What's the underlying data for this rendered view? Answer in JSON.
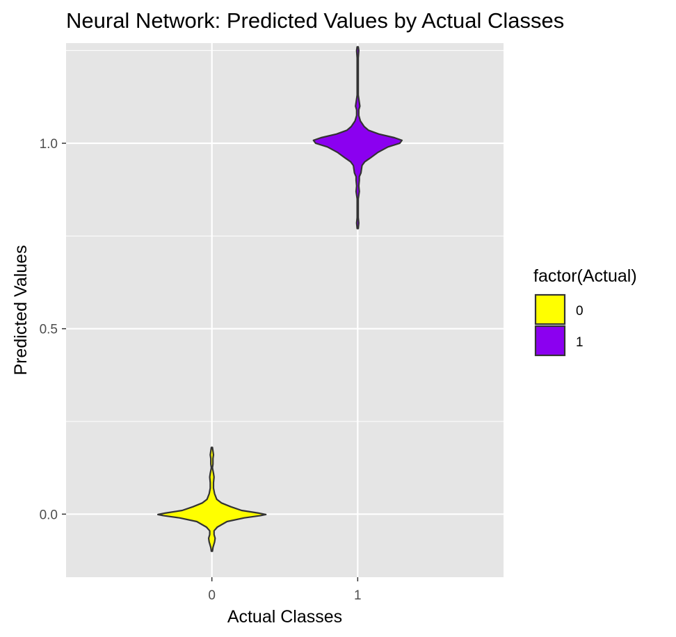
{
  "chart_data": {
    "type": "violin",
    "title": "Neural Network: Predicted Values by Actual Classes",
    "xlabel": "Actual Classes",
    "ylabel": "Predicted Values",
    "categories": [
      "0",
      "1"
    ],
    "ylim": [
      -0.17,
      1.27
    ],
    "y_ticks": [
      "0.0",
      "0.5",
      "1.0"
    ],
    "y_tick_values": [
      0.0,
      0.5,
      1.0
    ],
    "grid": true,
    "legend": {
      "title": "factor(Actual)",
      "position": "right",
      "entries": [
        {
          "label": "0",
          "color": "#FFFF00"
        },
        {
          "label": "1",
          "color": "#8B00F0"
        }
      ]
    },
    "series": [
      {
        "category": "0",
        "color": "#FFFF00",
        "range": [
          -0.1,
          0.18
        ],
        "profile": [
          [
            -0.1,
            0.01
          ],
          [
            -0.09,
            0.02
          ],
          [
            -0.075,
            0.05
          ],
          [
            -0.065,
            0.06
          ],
          [
            -0.055,
            0.04
          ],
          [
            -0.045,
            0.04
          ],
          [
            -0.035,
            0.1
          ],
          [
            -0.02,
            0.28
          ],
          [
            -0.01,
            0.6
          ],
          [
            -0.004,
            0.9
          ],
          [
            -0.001,
            1.0
          ],
          [
            0.003,
            0.86
          ],
          [
            0.01,
            0.55
          ],
          [
            0.02,
            0.35
          ],
          [
            0.03,
            0.18
          ],
          [
            0.04,
            0.09
          ],
          [
            0.055,
            0.05
          ],
          [
            0.07,
            0.03
          ],
          [
            0.085,
            0.03
          ],
          [
            0.1,
            0.04
          ],
          [
            0.11,
            0.03
          ],
          [
            0.125,
            0.01
          ],
          [
            0.135,
            0.02
          ],
          [
            0.15,
            0.02
          ],
          [
            0.16,
            0.03
          ],
          [
            0.17,
            0.02
          ],
          [
            0.18,
            0.01
          ]
        ]
      },
      {
        "category": "1",
        "color": "#8B00F0",
        "range": [
          0.77,
          1.26
        ],
        "profile": [
          [
            0.77,
            0.01
          ],
          [
            0.785,
            0.02
          ],
          [
            0.8,
            0.01
          ],
          [
            0.82,
            0.01
          ],
          [
            0.85,
            0.01
          ],
          [
            0.87,
            0.03
          ],
          [
            0.885,
            0.02
          ],
          [
            0.9,
            0.03
          ],
          [
            0.91,
            0.03
          ],
          [
            0.92,
            0.06
          ],
          [
            0.94,
            0.08
          ],
          [
            0.95,
            0.13
          ],
          [
            0.96,
            0.23
          ],
          [
            0.975,
            0.37
          ],
          [
            0.99,
            0.56
          ],
          [
            1.0,
            0.78
          ],
          [
            1.008,
            0.82
          ],
          [
            1.015,
            0.68
          ],
          [
            1.025,
            0.39
          ],
          [
            1.035,
            0.2
          ],
          [
            1.045,
            0.12
          ],
          [
            1.06,
            0.05
          ],
          [
            1.075,
            0.02
          ],
          [
            1.09,
            0.02
          ],
          [
            1.1,
            0.04
          ],
          [
            1.11,
            0.03
          ],
          [
            1.13,
            0.01
          ],
          [
            1.16,
            0.01
          ],
          [
            1.2,
            0.01
          ],
          [
            1.23,
            0.01
          ],
          [
            1.25,
            0.02
          ],
          [
            1.26,
            0.01
          ]
        ]
      }
    ]
  }
}
